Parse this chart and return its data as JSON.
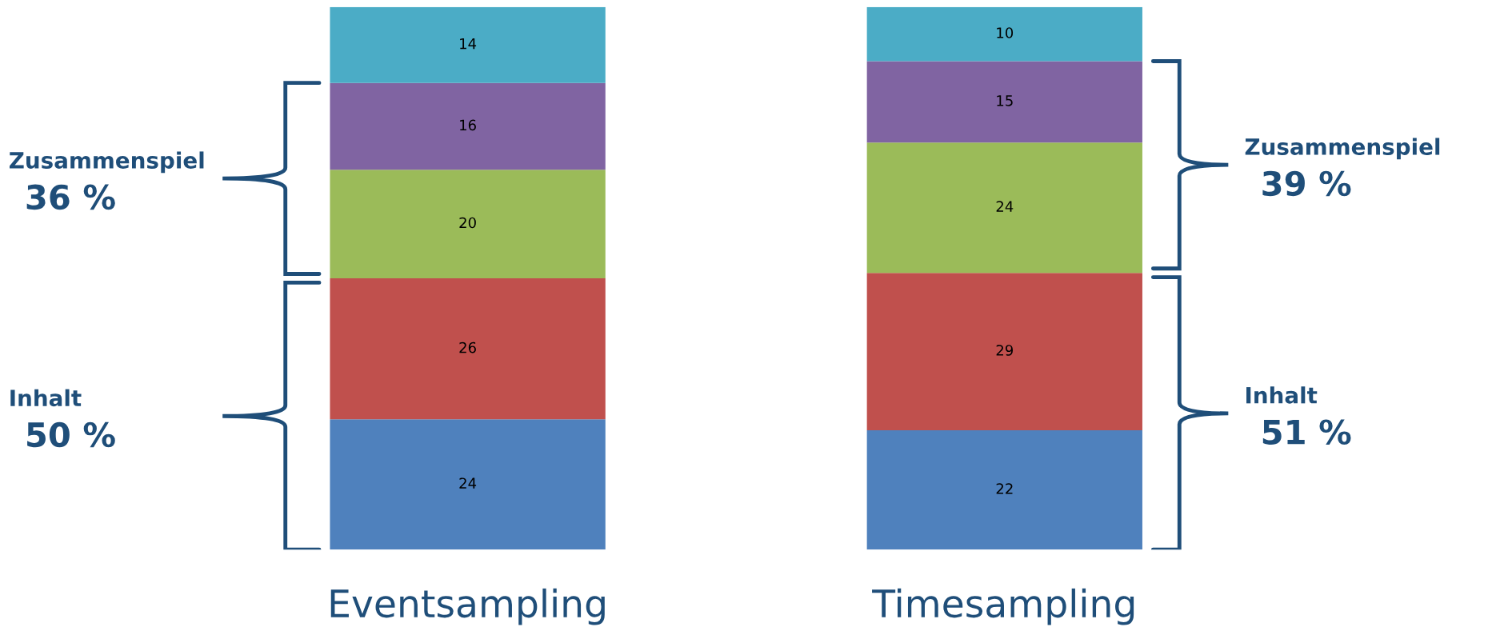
{
  "chart_data": {
    "type": "bar",
    "stacked": true,
    "data_labels": true,
    "categories": [
      "Eventsampling",
      "Timesampling"
    ],
    "series": [
      {
        "color": "#4f81bd",
        "values": [
          24,
          22
        ]
      },
      {
        "color": "#c0504d",
        "values": [
          26,
          29
        ]
      },
      {
        "color": "#9bbb59",
        "values": [
          20,
          24
        ]
      },
      {
        "color": "#8064a2",
        "values": [
          16,
          15
        ]
      },
      {
        "color": "#4bacc6",
        "values": [
          14,
          10
        ]
      }
    ],
    "annotations": [
      "Zusammenspiel",
      "36 %",
      "Inhalt",
      "50 %",
      "Zusammenspiel",
      "39 %",
      "Inhalt",
      "51 %"
    ]
  }
}
